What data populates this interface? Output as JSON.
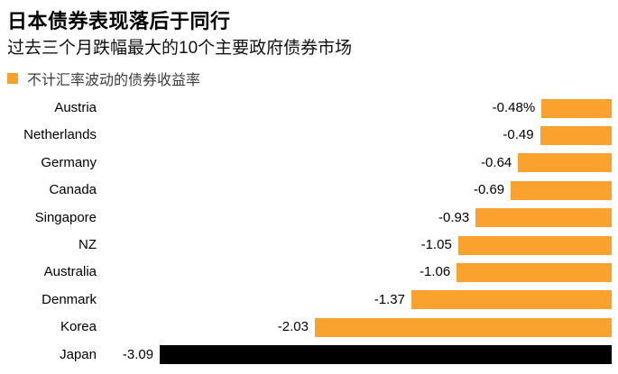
{
  "header": {
    "title": "日本债券表现落后于同行",
    "subtitle": "过去三个月跌幅最大的10个主要政府债券市场"
  },
  "legend": {
    "label": "不计汇率波动的债券收益率",
    "swatch_color": "#FAA22D"
  },
  "colors": {
    "accent_orange": "#FAA22D",
    "highlight_black": "#000000",
    "background": "#FFFFFF"
  },
  "chart_data": {
    "type": "bar",
    "orientation": "horizontal",
    "title": "日本债券表现落后于同行",
    "subtitle": "过去三个月跌幅最大的10个主要政府债券市场",
    "series_name": "不计汇率波动的债券收益率",
    "categories": [
      "Austria",
      "Netherlands",
      "Germany",
      "Canada",
      "Singapore",
      "NZ",
      "Australia",
      "Denmark",
      "Korea",
      "Japan"
    ],
    "values": [
      -0.48,
      -0.49,
      -0.64,
      -0.69,
      -0.93,
      -1.05,
      -1.06,
      -1.37,
      -2.03,
      -3.09
    ],
    "value_labels": [
      "-0.48%",
      "-0.49",
      "-0.64",
      "-0.69",
      "-0.93",
      "-1.05",
      "-1.06",
      "-1.37",
      "-2.03",
      "-3.09"
    ],
    "bar_colors": [
      "#FAA22D",
      "#FAA22D",
      "#FAA22D",
      "#FAA22D",
      "#FAA22D",
      "#FAA22D",
      "#FAA22D",
      "#FAA22D",
      "#FAA22D",
      "#000000"
    ],
    "unit": "%",
    "xlim": [
      -3.09,
      0
    ],
    "bars_anchor": "right",
    "grid": false,
    "legend_position": "top-left"
  }
}
